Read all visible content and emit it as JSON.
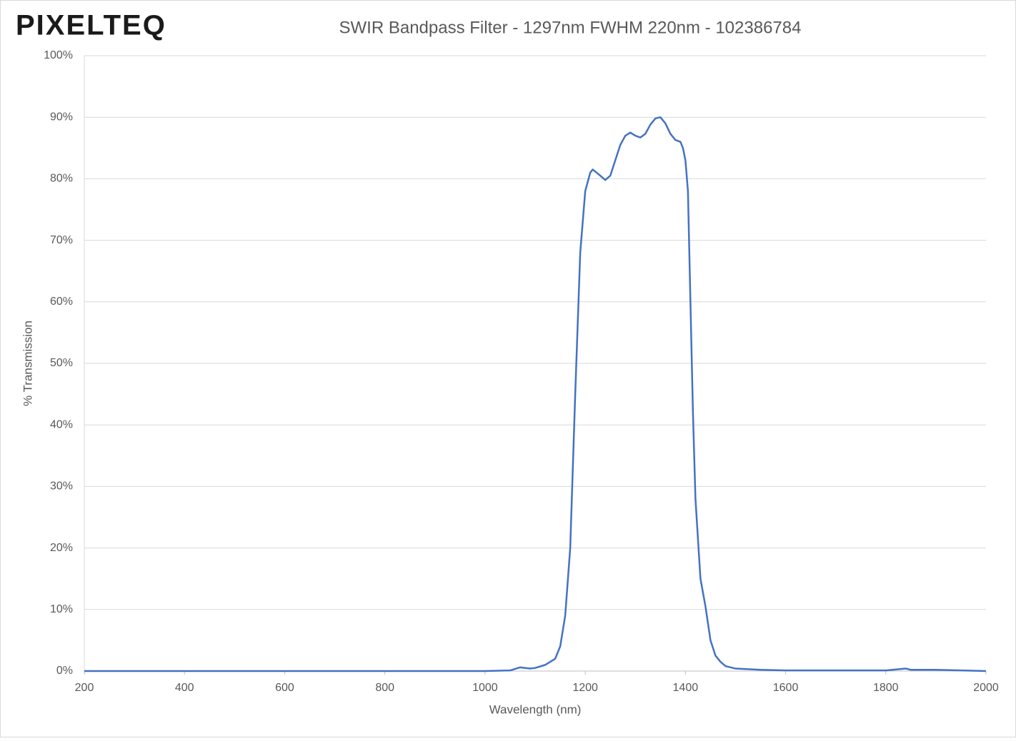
{
  "logo": "PIXELTEQ",
  "chart_data": {
    "type": "line",
    "title": "SWIR Bandpass Filter - 1297nm FWHM 220nm - 102386784",
    "x_label": "Wavelength (nm)",
    "y_label": "% Transmission",
    "xlim": [
      200,
      2000
    ],
    "xticks": [
      200,
      400,
      600,
      800,
      1000,
      1200,
      1400,
      1600,
      1800,
      2000
    ],
    "ylim": [
      0,
      100
    ],
    "yticks": [
      {
        "value": 0,
        "label": "0%"
      },
      {
        "value": 10,
        "label": "10%"
      },
      {
        "value": 20,
        "label": "20%"
      },
      {
        "value": 30,
        "label": "30%"
      },
      {
        "value": 40,
        "label": "40%"
      },
      {
        "value": 50,
        "label": "50%"
      },
      {
        "value": 60,
        "label": "60%"
      },
      {
        "value": 70,
        "label": "70%"
      },
      {
        "value": 80,
        "label": "80%"
      },
      {
        "value": 90,
        "label": "90%"
      },
      {
        "value": 100,
        "label": "100%"
      }
    ],
    "grid": true,
    "series": [
      {
        "color": "#4472c4",
        "x": [
          200,
          400,
          600,
          850,
          1000,
          1050,
          1070,
          1090,
          1100,
          1120,
          1140,
          1150,
          1160,
          1170,
          1180,
          1190,
          1200,
          1210,
          1215,
          1230,
          1240,
          1250,
          1260,
          1270,
          1280,
          1290,
          1300,
          1310,
          1320,
          1330,
          1340,
          1350,
          1360,
          1370,
          1380,
          1390,
          1395,
          1400,
          1405,
          1410,
          1415,
          1420,
          1430,
          1440,
          1450,
          1460,
          1470,
          1480,
          1500,
          1550,
          1600,
          1700,
          1800,
          1840,
          1850,
          1900,
          2000
        ],
        "values": [
          0,
          0,
          0,
          0,
          0,
          0.1,
          0.6,
          0.4,
          0.5,
          1,
          2,
          4,
          9,
          20,
          45,
          68,
          78,
          81,
          81.5,
          80.5,
          79.8,
          80.5,
          83,
          85.5,
          87,
          87.5,
          87,
          86.7,
          87.3,
          88.8,
          89.8,
          90,
          89,
          87.3,
          86.3,
          86,
          85,
          83,
          78,
          60,
          42,
          28,
          15,
          10.5,
          5,
          2.5,
          1.5,
          0.8,
          0.4,
          0.2,
          0.1,
          0.1,
          0.1,
          0.4,
          0.2,
          0.2,
          0
        ]
      }
    ]
  }
}
